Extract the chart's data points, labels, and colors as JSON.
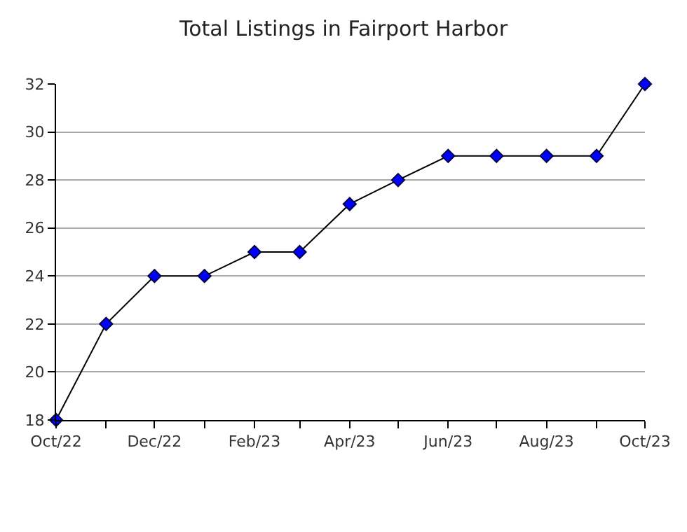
{
  "chart_data": {
    "type": "line",
    "title": "Total Listings in Fairport Harbor",
    "x": [
      "2022-10",
      "2022-11",
      "2022-12",
      "2023-01",
      "2023-02",
      "2023-03",
      "2023-04",
      "2023-05",
      "2023-06",
      "2023-07",
      "2023-08",
      "2023-09",
      "2023-10"
    ],
    "series": [
      {
        "color": "#0000ff",
        "values": [
          18,
          22,
          24,
          24,
          25,
          25,
          27,
          28,
          29,
          29,
          29,
          29,
          32
        ]
      }
    ],
    "xlim": [
      "2022-10",
      "2023-10"
    ],
    "xticks": [
      {
        "value": "2022-10",
        "label": "Oct/22"
      },
      {
        "value": "2022-11",
        "label": null
      },
      {
        "value": "2022-12",
        "label": "Dec/22"
      },
      {
        "value": "2023-01",
        "label": null
      },
      {
        "value": "2023-02",
        "label": "Feb/23"
      },
      {
        "value": "2023-03",
        "label": null
      },
      {
        "value": "2023-04",
        "label": "Apr/23"
      },
      {
        "value": "2023-05",
        "label": null
      },
      {
        "value": "2023-06",
        "label": "Jun/23"
      },
      {
        "value": "2023-07",
        "label": null
      },
      {
        "value": "2023-08",
        "label": "Aug/23"
      },
      {
        "value": "2023-09",
        "label": null
      },
      {
        "value": "2023-10",
        "label": "Oct/23"
      }
    ],
    "ylim": [
      18,
      32
    ],
    "yticks": [
      18,
      20,
      22,
      24,
      26,
      28,
      30,
      32
    ],
    "grid": "y",
    "marker": "diamond",
    "line_style": "solid"
  }
}
